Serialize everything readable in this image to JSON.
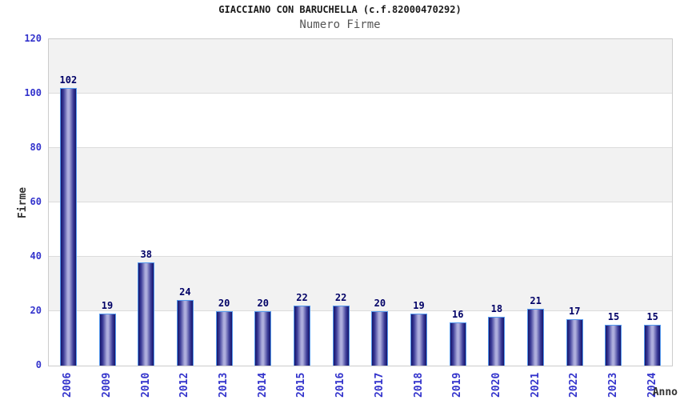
{
  "chart_data": {
    "type": "bar",
    "title": "GIACCIANO CON BARUCHELLA (c.f.82000470292)",
    "subtitle": "Numero Firme",
    "xlabel": "Anno",
    "ylabel": "Firme",
    "categories": [
      "2006",
      "2009",
      "2010",
      "2012",
      "2013",
      "2014",
      "2015",
      "2016",
      "2017",
      "2018",
      "2019",
      "2020",
      "2021",
      "2022",
      "2023",
      "2024"
    ],
    "values": [
      102,
      19,
      38,
      24,
      20,
      20,
      22,
      22,
      20,
      19,
      16,
      18,
      21,
      17,
      15,
      15
    ],
    "ylim": [
      0,
      120
    ],
    "yticks": [
      0,
      20,
      40,
      60,
      80,
      100,
      120
    ],
    "grid": "horizontal alternating bands every 20 units",
    "legend": "none",
    "colors": {
      "tick_label": "#3333cc",
      "value_label": "#000066",
      "bar_border": "#5599ee",
      "bar_dark": "#14146a",
      "bar_light": "#aeaedd",
      "band_gray": "#f2f2f2",
      "band_white": "#ffffff",
      "grid_line": "#dcdcdc",
      "plot_border": "#cccccc",
      "title_color": "#1a1a1a",
      "subtitle_color": "#555555",
      "axis_title_color": "#333333"
    }
  }
}
